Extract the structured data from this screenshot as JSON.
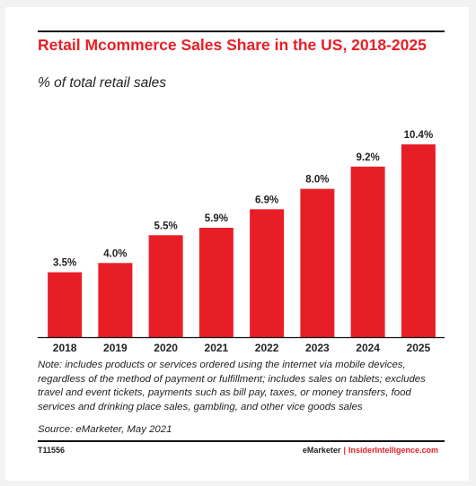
{
  "header": {
    "title": "Retail Mcommerce Sales Share in the US, 2018-2025",
    "subtitle": "% of total retail sales"
  },
  "chart_data": {
    "type": "bar",
    "categories": [
      "2018",
      "2019",
      "2020",
      "2021",
      "2022",
      "2023",
      "2024",
      "2025"
    ],
    "values": [
      3.5,
      4.0,
      5.5,
      5.9,
      6.9,
      8.0,
      9.2,
      10.4
    ],
    "value_labels": [
      "3.5%",
      "4.0%",
      "5.5%",
      "5.9%",
      "6.9%",
      "8.0%",
      "9.2%",
      "10.4%"
    ],
    "title": "Retail Mcommerce Sales Share in the US, 2018-2025",
    "ylabel": "% of total retail sales",
    "ylim": [
      0,
      10.4
    ],
    "bar_color": "#e81e26",
    "grid": false
  },
  "footer": {
    "note": "Note: includes products or services ordered using the internet via mobile devices, regardless of the method of payment or fulfillment; includes sales on tablets; excludes travel and event tickets, payments such as bill pay, taxes, or money transfers, food services and drinking place sales, gambling, and other vice goods sales",
    "source": "Source: eMarketer, May 2021",
    "chart_id": "T11556",
    "brand_primary": "eMarketer",
    "brand_separator": "|",
    "brand_secondary": "InsiderIntelligence.com"
  }
}
